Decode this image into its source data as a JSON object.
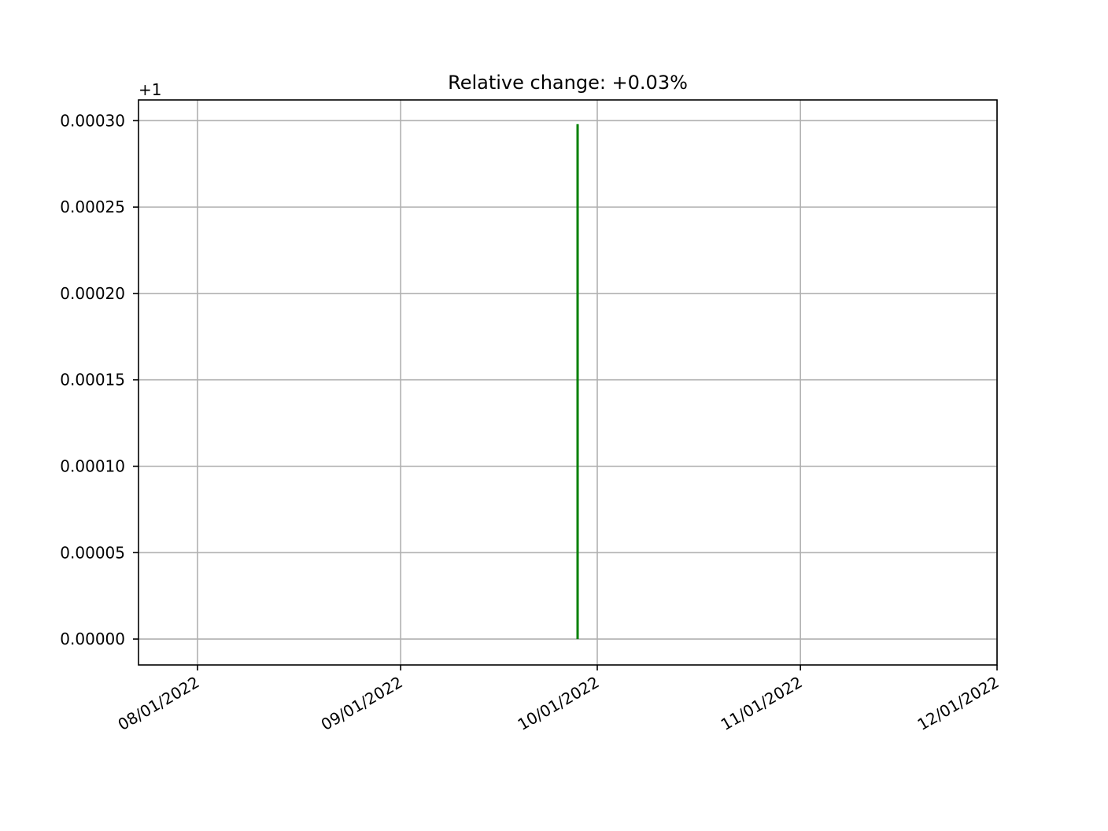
{
  "chart_data": {
    "type": "line",
    "title": "Relative change: +0.03%",
    "xlabel": "",
    "ylabel": "",
    "y_offset_label": "+1",
    "x_ticks": [
      "08/01/2022",
      "09/01/2022",
      "10/01/2022",
      "11/01/2022",
      "12/01/2022"
    ],
    "y_ticks": [
      "0.00000",
      "0.00005",
      "0.00010",
      "0.00015",
      "0.00020",
      "0.00025",
      "0.00030"
    ],
    "xlim": [
      "2022-07-23",
      "2022-12-01"
    ],
    "ylim": [
      0.999985,
      1.000312
    ],
    "grid": true,
    "series": [
      {
        "color": "#008000",
        "points": [
          {
            "x": "2022-09-28",
            "y": 1.0
          },
          {
            "x": "2022-09-28",
            "y": 1.000298
          }
        ]
      }
    ]
  }
}
